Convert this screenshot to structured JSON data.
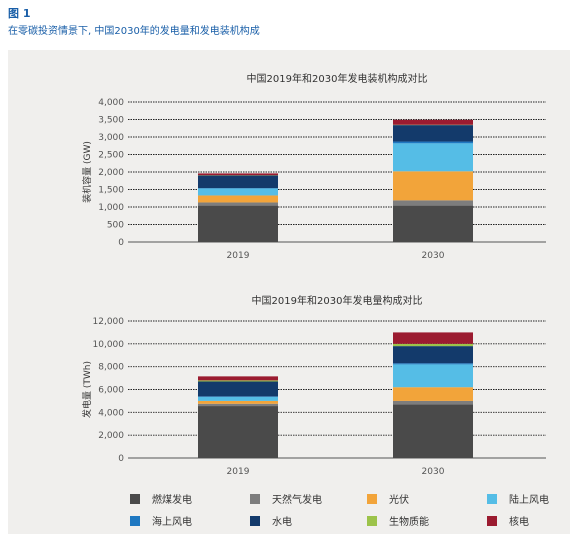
{
  "figure": {
    "label": "图 1",
    "caption": "在零碳投资情景下, 中国2030年的发电量和发电装机构成"
  },
  "colors": {
    "coal": "#4a4a4a",
    "gas": "#7d7d7d",
    "solar": "#f2a43a",
    "onshore_wind": "#55bde6",
    "offshore_wind": "#1f78c1",
    "hydro": "#133a6b",
    "biomass": "#9cc34a",
    "nuclear": "#9b1b30"
  },
  "legend": [
    {
      "key": "coal",
      "label": "燃煤发电"
    },
    {
      "key": "gas",
      "label": "天然气发电"
    },
    {
      "key": "solar",
      "label": "光伏"
    },
    {
      "key": "onshore_wind",
      "label": "陆上风电"
    },
    {
      "key": "offshore_wind",
      "label": "海上风电"
    },
    {
      "key": "hydro",
      "label": "水电"
    },
    {
      "key": "biomass",
      "label": "生物质能"
    },
    {
      "key": "nuclear",
      "label": "核电"
    }
  ],
  "chart_data": [
    {
      "type": "bar",
      "stacked": true,
      "title": "中国2019年和2030年发电装机构成对比",
      "ylabel": "装机容量 (GW)",
      "ylim": [
        0,
        4000
      ],
      "yticks": [
        0,
        500,
        1000,
        1500,
        2000,
        2500,
        3000,
        3500,
        4000
      ],
      "yticklabels": [
        "0",
        "500",
        "1,000",
        "1,500",
        "2,000",
        "2,500",
        "3,000",
        "3,500",
        "4,000"
      ],
      "categories": [
        "2019",
        "2030"
      ],
      "grid": true,
      "series": [
        {
          "key": "coal",
          "name": "燃煤发电",
          "values": [
            1040,
            1040
          ]
        },
        {
          "key": "gas",
          "name": "天然气发电",
          "values": [
            90,
            150
          ]
        },
        {
          "key": "solar",
          "name": "光伏",
          "values": [
            200,
            830
          ]
        },
        {
          "key": "onshore_wind",
          "name": "陆上风电",
          "values": [
            200,
            800
          ]
        },
        {
          "key": "offshore_wind",
          "name": "海上风电",
          "values": [
            10,
            50
          ]
        },
        {
          "key": "hydro",
          "name": "水电",
          "values": [
            360,
            470
          ]
        },
        {
          "key": "biomass",
          "name": "生物质能",
          "values": [
            10,
            10
          ]
        },
        {
          "key": "nuclear",
          "name": "核电",
          "values": [
            50,
            140
          ]
        }
      ]
    },
    {
      "type": "bar",
      "stacked": true,
      "title": "中国2019年和2030年发电量构成对比",
      "ylabel": "发电量 (TWh)",
      "ylim": [
        0,
        12000
      ],
      "yticks": [
        0,
        2000,
        4000,
        6000,
        8000,
        10000,
        12000
      ],
      "yticklabels": [
        "0",
        "2,000",
        "4,000",
        "6,000",
        "8,000",
        "10,000",
        "12,000"
      ],
      "categories": [
        "2019",
        "2030"
      ],
      "grid": true,
      "series": [
        {
          "key": "coal",
          "name": "燃煤发电",
          "values": [
            4550,
            4700
          ]
        },
        {
          "key": "gas",
          "name": "天然气发电",
          "values": [
            200,
            300
          ]
        },
        {
          "key": "solar",
          "name": "光伏",
          "values": [
            250,
            1200
          ]
        },
        {
          "key": "onshore_wind",
          "name": "陆上风电",
          "values": [
            350,
            2000
          ]
        },
        {
          "key": "offshore_wind",
          "name": "海上风电",
          "values": [
            50,
            100
          ]
        },
        {
          "key": "hydro",
          "name": "水电",
          "values": [
            1300,
            1500
          ]
        },
        {
          "key": "biomass",
          "name": "生物质能",
          "values": [
            100,
            200
          ]
        },
        {
          "key": "nuclear",
          "name": "核电",
          "values": [
            350,
            1000
          ]
        }
      ]
    }
  ]
}
